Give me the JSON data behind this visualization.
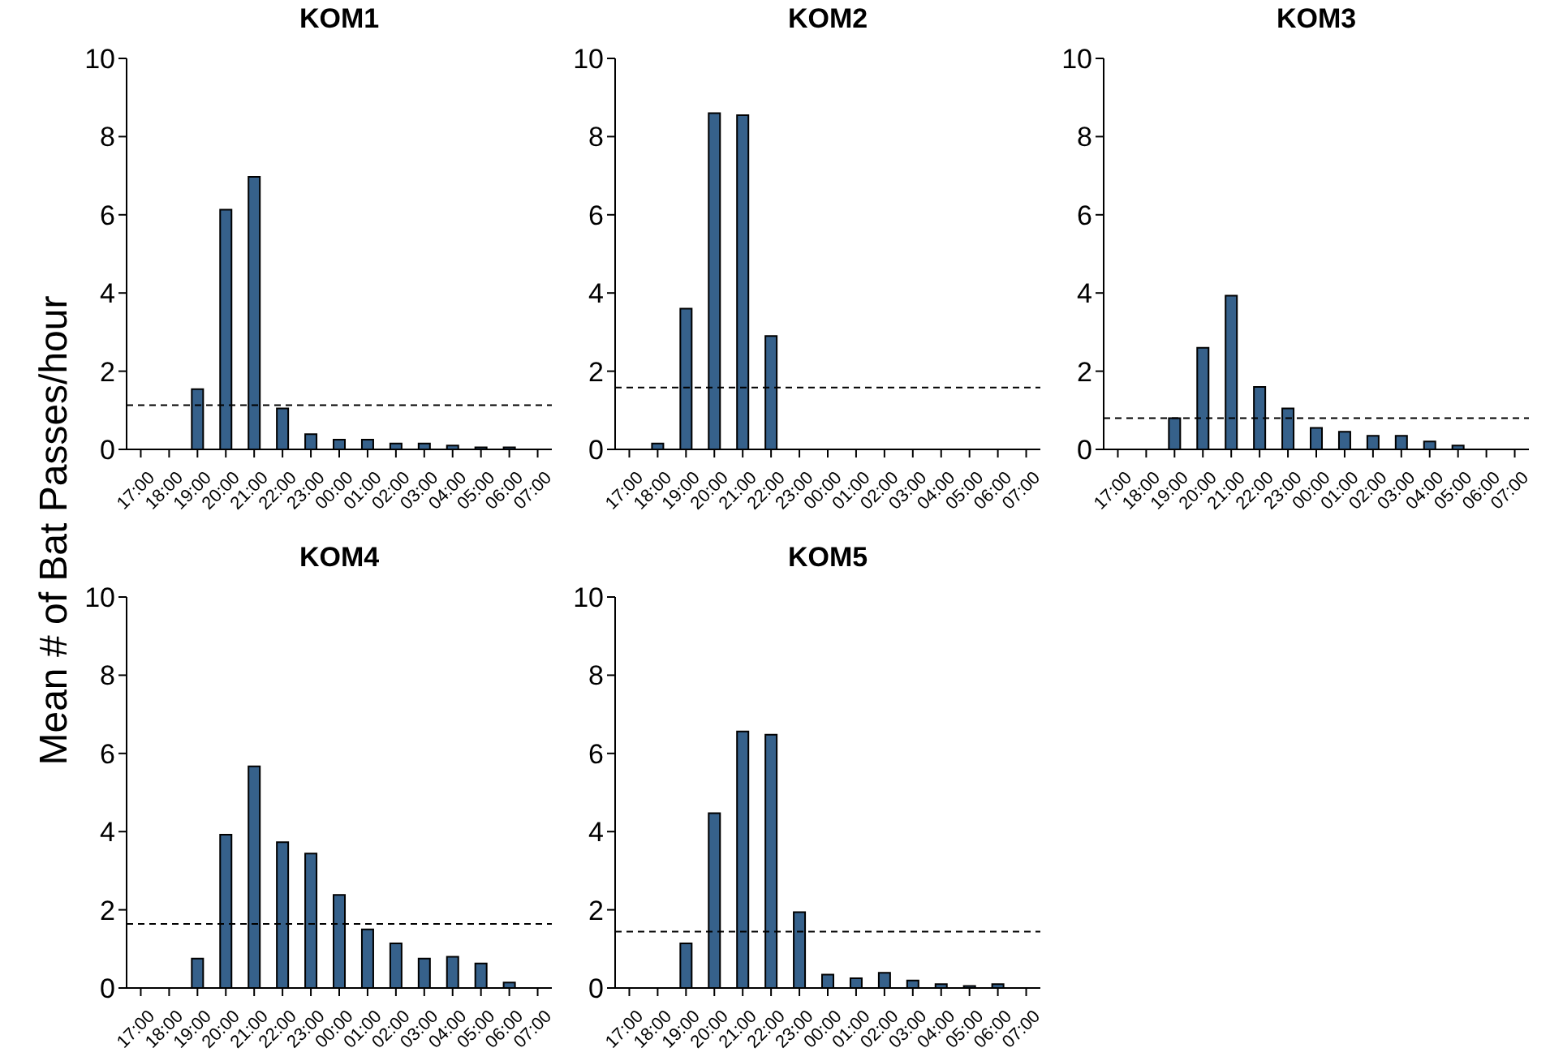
{
  "chart_data": [
    {
      "type": "bar",
      "title": "KOM1",
      "ylabel": "Mean # of Bat Passes/hour",
      "categories": [
        "17:00",
        "18:00",
        "19:00",
        "20:00",
        "21:00",
        "22:00",
        "23:00",
        "00:00",
        "01:00",
        "02:00",
        "03:00",
        "04:00",
        "05:00",
        "06:00",
        "07:00"
      ],
      "values": [
        0,
        0,
        1.54,
        6.13,
        6.97,
        1.05,
        0.39,
        0.25,
        0.25,
        0.15,
        0.15,
        0.1,
        0.05,
        0.05,
        0
      ],
      "color": "#36618b",
      "ylim": [
        0,
        10
      ],
      "yticks": [
        0,
        2,
        4,
        6,
        8,
        10
      ],
      "ref_lines": [
        {
          "axis": "y",
          "value": 1.13,
          "color": "#000000",
          "line_style": "dashed"
        }
      ]
    },
    {
      "type": "bar",
      "title": "KOM2",
      "categories": [
        "17:00",
        "18:00",
        "19:00",
        "20:00",
        "21:00",
        "22:00",
        "23:00",
        "00:00",
        "01:00",
        "02:00",
        "03:00",
        "04:00",
        "05:00",
        "06:00",
        "07:00"
      ],
      "values": [
        0,
        0.15,
        3.6,
        8.6,
        8.55,
        2.9,
        0,
        0,
        0,
        0,
        0,
        0,
        0,
        0,
        0
      ],
      "color": "#36618b",
      "ylim": [
        0,
        10
      ],
      "yticks": [
        0,
        2,
        4,
        6,
        8,
        10
      ],
      "ref_lines": [
        {
          "axis": "y",
          "value": 1.58,
          "color": "#000000",
          "line_style": "dashed"
        }
      ]
    },
    {
      "type": "bar",
      "title": "KOM3",
      "categories": [
        "17:00",
        "18:00",
        "19:00",
        "20:00",
        "21:00",
        "22:00",
        "23:00",
        "00:00",
        "01:00",
        "02:00",
        "03:00",
        "04:00",
        "05:00",
        "06:00",
        "07:00"
      ],
      "values": [
        0,
        0,
        0.8,
        2.6,
        3.93,
        1.6,
        1.05,
        0.55,
        0.45,
        0.35,
        0.35,
        0.2,
        0.1,
        0,
        0
      ],
      "color": "#36618b",
      "ylim": [
        0,
        10
      ],
      "yticks": [
        0,
        2,
        4,
        6,
        8,
        10
      ],
      "ref_lines": [
        {
          "axis": "y",
          "value": 0.8,
          "color": "#000000",
          "line_style": "dashed"
        }
      ]
    },
    {
      "type": "bar",
      "title": "KOM4",
      "categories": [
        "17:00",
        "18:00",
        "19:00",
        "20:00",
        "21:00",
        "22:00",
        "23:00",
        "00:00",
        "01:00",
        "02:00",
        "03:00",
        "04:00",
        "05:00",
        "06:00",
        "07:00"
      ],
      "values": [
        0,
        0,
        0.75,
        3.92,
        5.67,
        3.73,
        3.44,
        2.38,
        1.5,
        1.14,
        0.75,
        0.8,
        0.63,
        0.14,
        0
      ],
      "color": "#36618b",
      "ylim": [
        0,
        10
      ],
      "yticks": [
        0,
        2,
        4,
        6,
        8,
        10
      ],
      "ref_lines": [
        {
          "axis": "y",
          "value": 1.64,
          "color": "#000000",
          "line_style": "dashed"
        }
      ]
    },
    {
      "type": "bar",
      "title": "KOM5",
      "categories": [
        "17:00",
        "18:00",
        "19:00",
        "20:00",
        "21:00",
        "22:00",
        "23:00",
        "00:00",
        "01:00",
        "02:00",
        "03:00",
        "04:00",
        "05:00",
        "06:00",
        "07:00"
      ],
      "values": [
        0,
        0,
        1.14,
        4.47,
        6.56,
        6.48,
        1.94,
        0.34,
        0.25,
        0.39,
        0.19,
        0.1,
        0.05,
        0.1,
        0
      ],
      "color": "#36618b",
      "ylim": [
        0,
        10
      ],
      "yticks": [
        0,
        2,
        4,
        6,
        8,
        10
      ],
      "ref_lines": [
        {
          "axis": "y",
          "value": 1.44,
          "color": "#000000",
          "line_style": "dashed"
        }
      ]
    }
  ]
}
